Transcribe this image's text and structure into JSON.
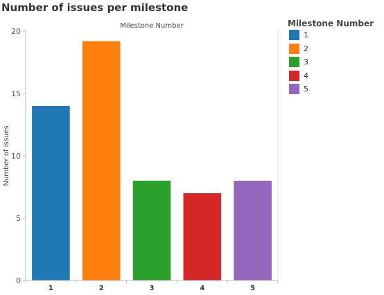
{
  "title": "Number of issues per milestone",
  "chart_data": {
    "type": "bar",
    "title": "Number of issues per milestone",
    "column_header": "Milestone Number",
    "xlabel": "",
    "ylabel": "Number of issues",
    "categories": [
      "1",
      "2",
      "3",
      "4",
      "5"
    ],
    "values": [
      14,
      19.2,
      8,
      7,
      8
    ],
    "colors": [
      "#1f77b4",
      "#ff7f0e",
      "#2ca02c",
      "#d62728",
      "#9467bd"
    ],
    "ylim": [
      0,
      20
    ],
    "yticks": [
      "0",
      "5",
      "10",
      "15",
      "20"
    ],
    "grid": false,
    "legend_position": "right"
  },
  "legend": {
    "title": "Milestone Number",
    "items": [
      {
        "label": "1",
        "color": "#1f77b4"
      },
      {
        "label": "2",
        "color": "#ff7f0e"
      },
      {
        "label": "3",
        "color": "#2ca02c"
      },
      {
        "label": "4",
        "color": "#d62728"
      },
      {
        "label": "5",
        "color": "#9467bd"
      }
    ]
  }
}
